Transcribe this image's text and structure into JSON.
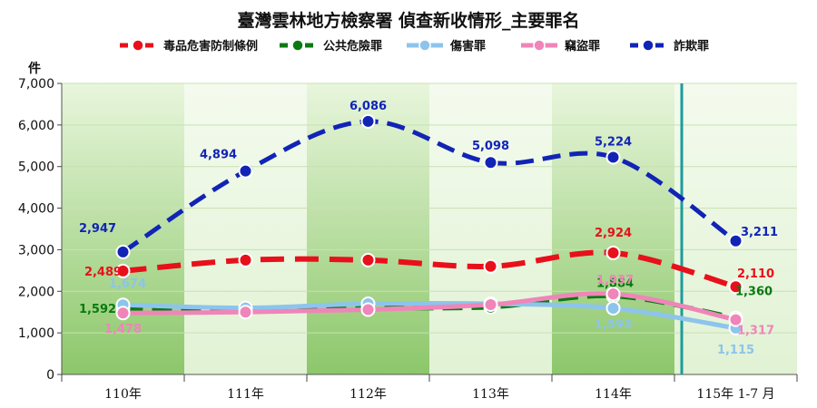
{
  "chart_data": {
    "type": "line",
    "title": "臺灣雲林地方檢察署 偵查新收情形_主要罪名",
    "ylabel": "件",
    "categories": [
      "110年",
      "111年",
      "112年",
      "113年",
      "114年",
      "115年 1-7 月"
    ],
    "ylim": [
      0,
      7000
    ],
    "yticks": [
      "0",
      "1,000",
      "2,000",
      "3,000",
      "4,000",
      "5,000",
      "6,000",
      "7,000"
    ],
    "grid": true,
    "legend_position": "top",
    "series": [
      {
        "name": "毒品危害防制條例",
        "color": "#e8101a",
        "values": [
          2489,
          2750,
          2750,
          2600,
          2924,
          2110
        ],
        "labels": [
          "2,489",
          "",
          "",
          "",
          "2,924",
          "2,110"
        ]
      },
      {
        "name": "公共危險罪",
        "color": "#0a7a12",
        "values": [
          1592,
          1560,
          1600,
          1620,
          1884,
          1360
        ],
        "labels": [
          "1,592",
          "",
          "",
          "",
          "1,884",
          "1,360"
        ]
      },
      {
        "name": "傷害罪",
        "color": "#8cc4ec",
        "values": [
          1674,
          1600,
          1700,
          1700,
          1593,
          1115
        ],
        "labels": [
          "1,674",
          "",
          "",
          "",
          "1,593",
          "1,115"
        ]
      },
      {
        "name": "竊盜罪",
        "color": "#ef85b9",
        "values": [
          1478,
          1500,
          1560,
          1680,
          1937,
          1317
        ],
        "labels": [
          "1,478",
          "",
          "",
          "",
          "1,937",
          "1,317"
        ]
      },
      {
        "name": "詐欺罪",
        "color": "#1124b6",
        "values": [
          2947,
          4894,
          6086,
          5098,
          5224,
          3211
        ],
        "labels": [
          "2,947",
          "4,894",
          "6,086",
          "5,098",
          "5,224",
          "3,211"
        ]
      }
    ]
  }
}
